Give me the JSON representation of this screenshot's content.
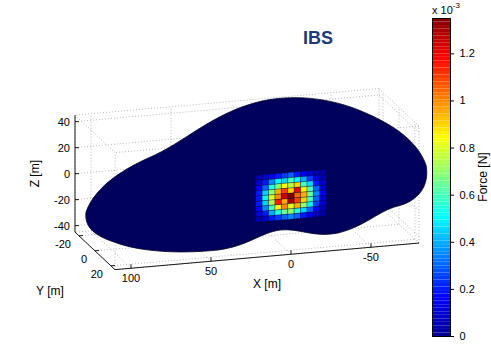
{
  "chart_data": {
    "type": "surface3d",
    "title": "IBS",
    "x_label": "X [m]",
    "y_label": "Y [m]",
    "z_label": "Z [m]",
    "xlim": [
      110,
      -80
    ],
    "xticks": [
      100,
      50,
      0,
      -50
    ],
    "ylim": [
      -25,
      25
    ],
    "yticks": [
      -20,
      0,
      20
    ],
    "zlim": [
      -45,
      45
    ],
    "zticks": [
      -40,
      -20,
      0,
      20,
      40
    ],
    "grid": true,
    "cells": {
      "x": [
        20,
        16,
        12,
        8,
        4,
        0,
        -4,
        -8,
        -12,
        -16,
        -20
      ],
      "z": [
        16,
        12,
        8,
        4,
        0,
        -4,
        -8,
        -12,
        -16
      ],
      "force": [
        [
          0.05,
          0.1,
          0.15,
          0.2,
          0.25,
          0.3,
          0.2,
          0.15,
          0.1,
          0.05,
          0.02
        ],
        [
          0.1,
          0.2,
          0.35,
          0.5,
          0.45,
          0.6,
          0.5,
          0.4,
          0.25,
          0.1,
          0.05
        ],
        [
          0.15,
          0.3,
          0.55,
          0.7,
          0.85,
          0.75,
          0.9,
          0.6,
          0.45,
          0.2,
          0.1
        ],
        [
          0.2,
          0.45,
          0.7,
          0.95,
          1.1,
          0.9,
          1.2,
          0.85,
          0.6,
          0.3,
          0.1
        ],
        [
          0.2,
          0.5,
          0.8,
          1.0,
          1.25,
          1.35,
          1.05,
          0.95,
          0.65,
          0.35,
          0.15
        ],
        [
          0.2,
          0.45,
          0.75,
          1.15,
          0.95,
          1.3,
          1.1,
          0.9,
          0.6,
          0.3,
          0.1
        ],
        [
          0.15,
          0.35,
          0.6,
          0.85,
          1.0,
          0.8,
          0.95,
          0.7,
          0.5,
          0.25,
          0.1
        ],
        [
          0.1,
          0.2,
          0.4,
          0.55,
          0.65,
          0.7,
          0.55,
          0.45,
          0.3,
          0.15,
          0.05
        ],
        [
          0.05,
          0.1,
          0.2,
          0.25,
          0.3,
          0.35,
          0.3,
          0.2,
          0.15,
          0.05,
          0.02
        ]
      ]
    },
    "colorbar": {
      "label": "Force [N]",
      "multiplier": "x 10",
      "exponent": "-3",
      "range": [
        0,
        1.35
      ],
      "ticks": [
        0,
        0.2,
        0.4,
        0.6,
        0.8,
        1,
        1.2
      ]
    }
  }
}
